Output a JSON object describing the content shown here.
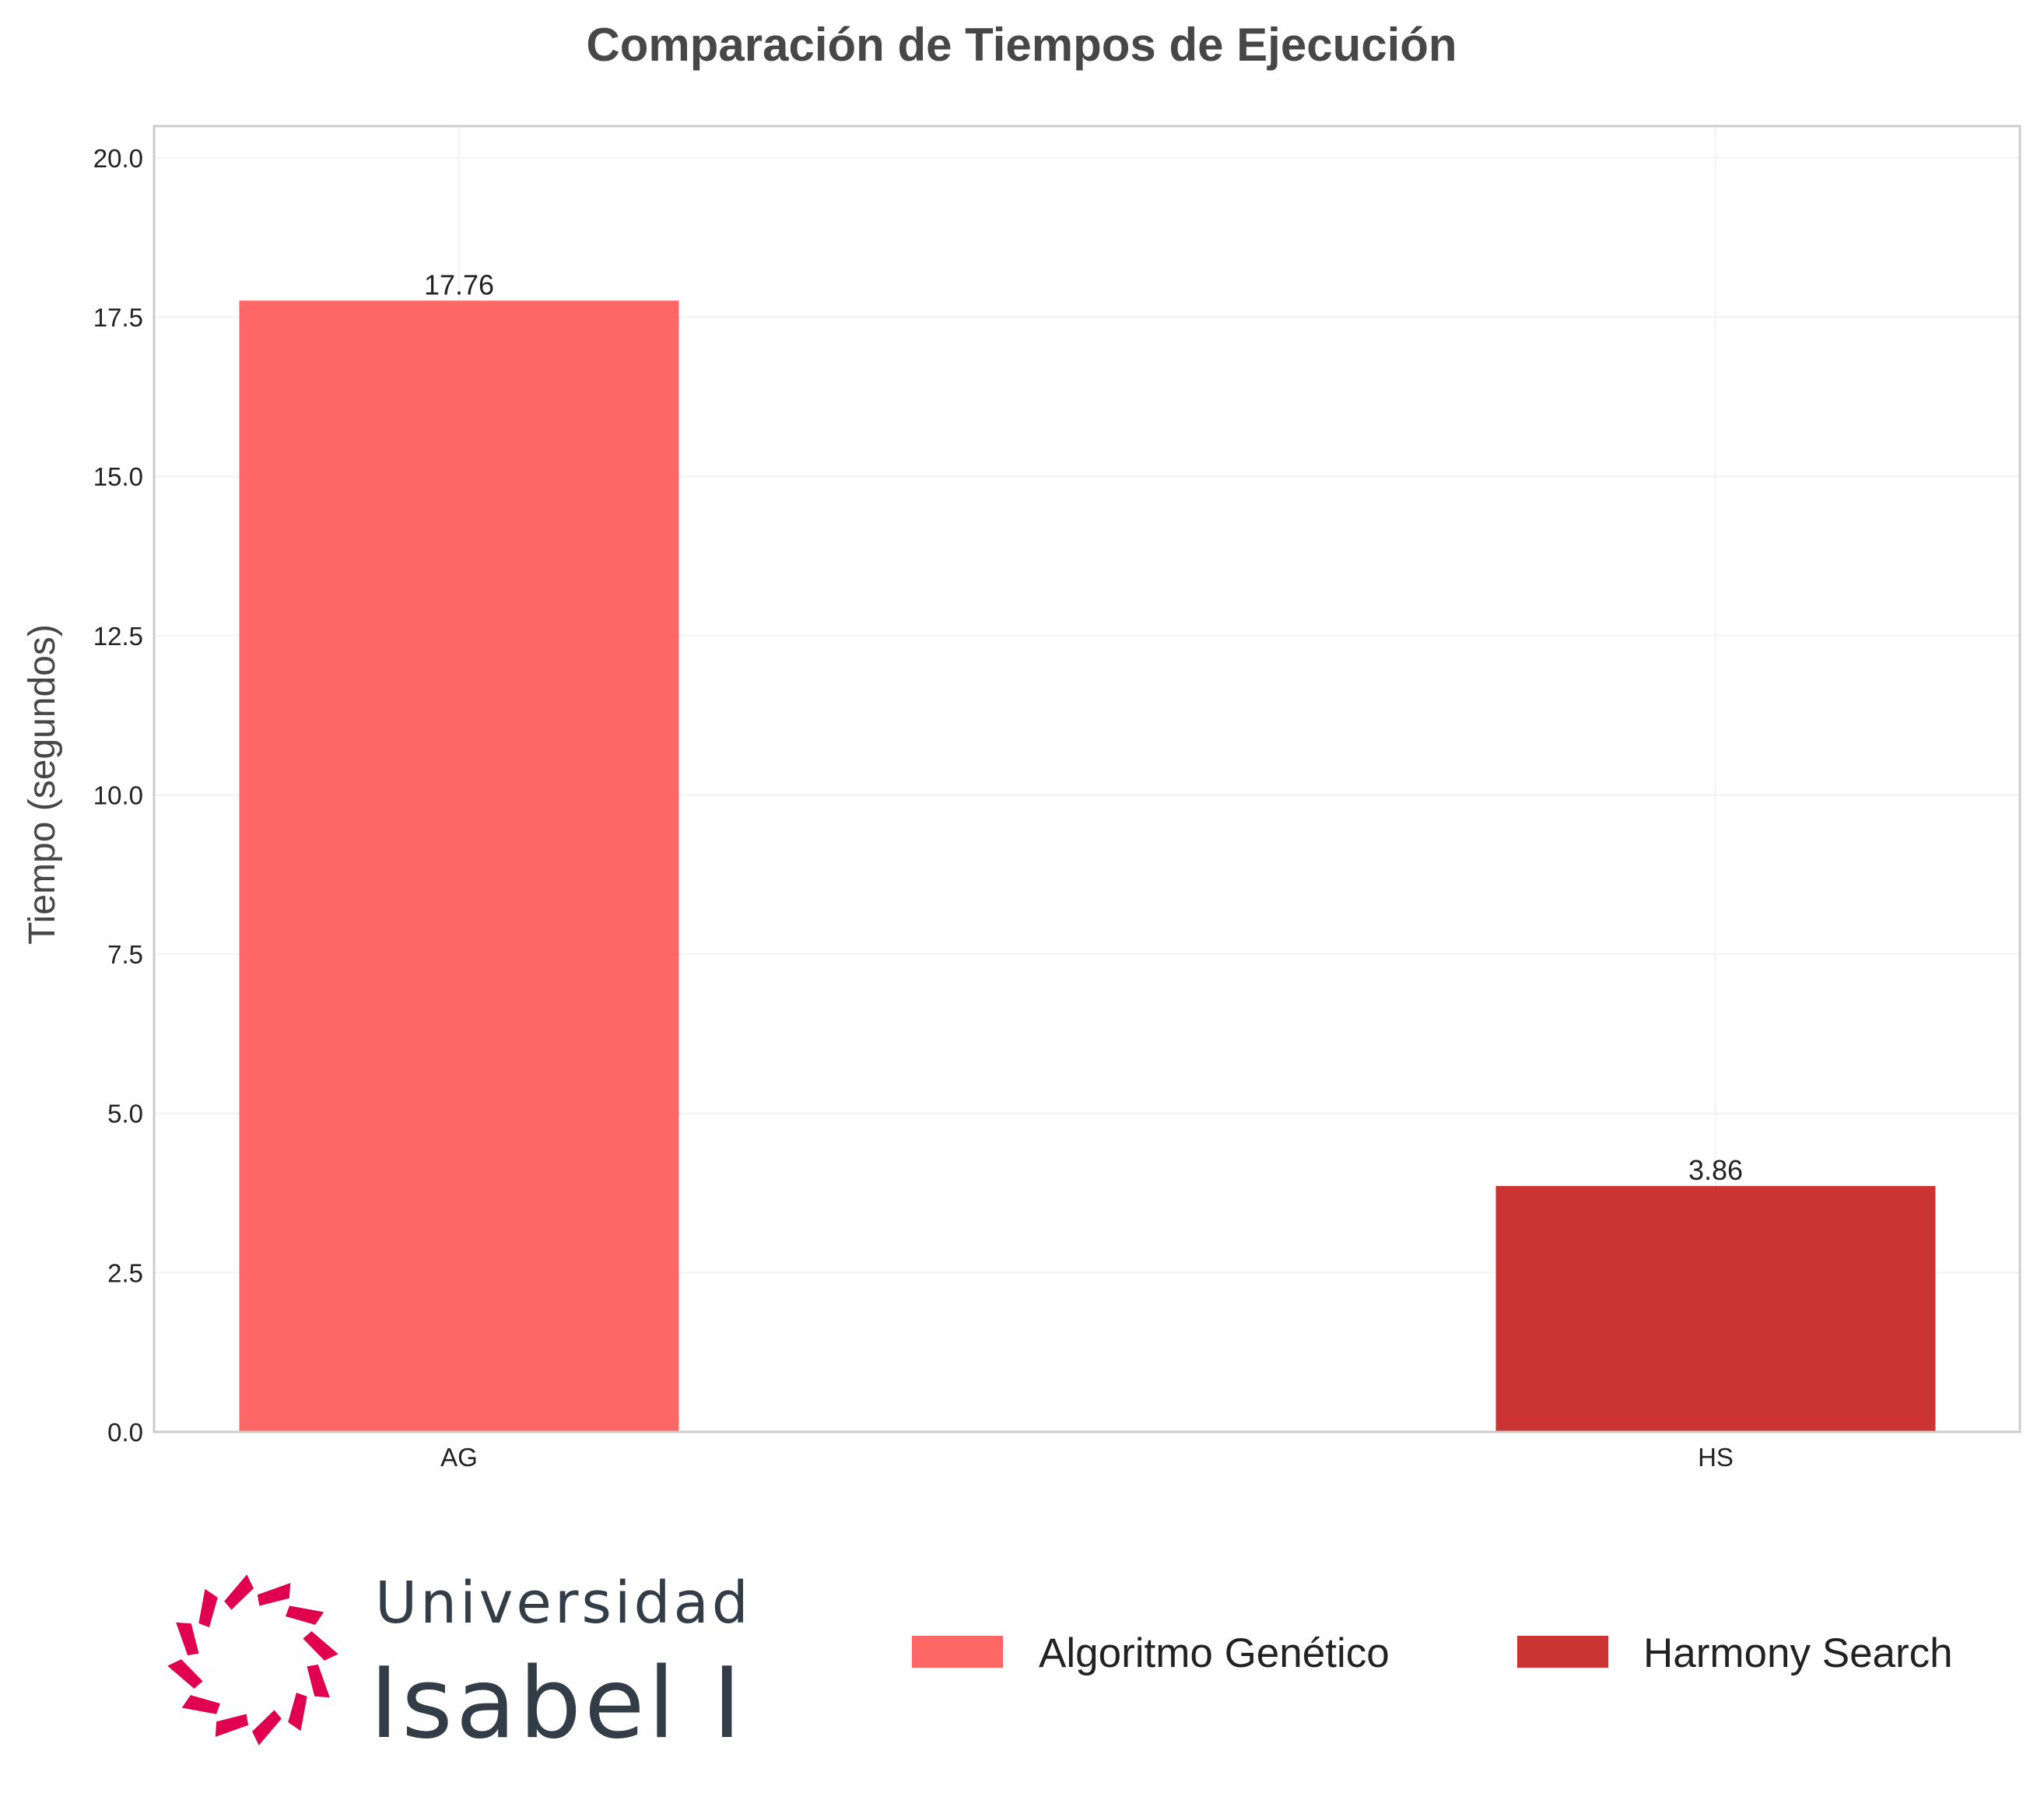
{
  "chart_data": {
    "type": "bar",
    "title": "Comparación de Tiempos de Ejecución",
    "xlabel": "",
    "ylabel": "Tiempo (segundos)",
    "categories": [
      "AG",
      "HS"
    ],
    "values": [
      17.76,
      3.86
    ],
    "value_labels": [
      "17.76",
      "3.86"
    ],
    "ylim": [
      0,
      20.5
    ],
    "yticks": [
      0.0,
      2.5,
      5.0,
      7.5,
      10.0,
      12.5,
      15.0,
      17.5,
      20.0
    ],
    "ytick_labels": [
      "0.0",
      "2.5",
      "5.0",
      "7.5",
      "10.0",
      "12.5",
      "15.0",
      "17.5",
      "20.0"
    ],
    "grid": true,
    "colors": [
      "#ff6666",
      "#cc3333"
    ],
    "legend": {
      "placement": "bottom-right",
      "entries": [
        {
          "label": "Algoritmo Genético",
          "color": "#ff6666"
        },
        {
          "label": "Harmony Search",
          "color": "#cc3333"
        }
      ]
    }
  },
  "logo": {
    "line1": "Universidad",
    "line2": "Isabel I",
    "color": "#e0004d"
  }
}
